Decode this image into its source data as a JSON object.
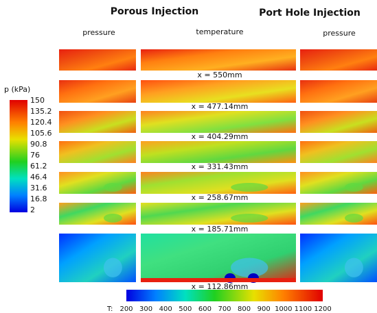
{
  "header": {
    "titles": [
      "Porous Injection",
      "Port Hole Injection"
    ],
    "columns": [
      "pressure",
      "temperature",
      "pressure"
    ]
  },
  "rows": [
    "x = 550mm",
    "x = 477.14mm",
    "x = 404.29mm",
    "x = 331.43mm",
    "x = 258.67mm",
    "x = 185.71mm",
    "x = 112.86mm"
  ],
  "pressure_colorbar": {
    "label": "p (kPa)",
    "ticks": [
      150,
      135.2,
      120.4,
      105.6,
      90.8,
      76,
      61.2,
      46.4,
      31.6,
      16.8,
      2
    ]
  },
  "temperature_colorbar": {
    "label": "T:",
    "ticks": [
      200,
      300,
      400,
      500,
      600,
      700,
      800,
      900,
      1000,
      1100,
      1200
    ]
  }
}
